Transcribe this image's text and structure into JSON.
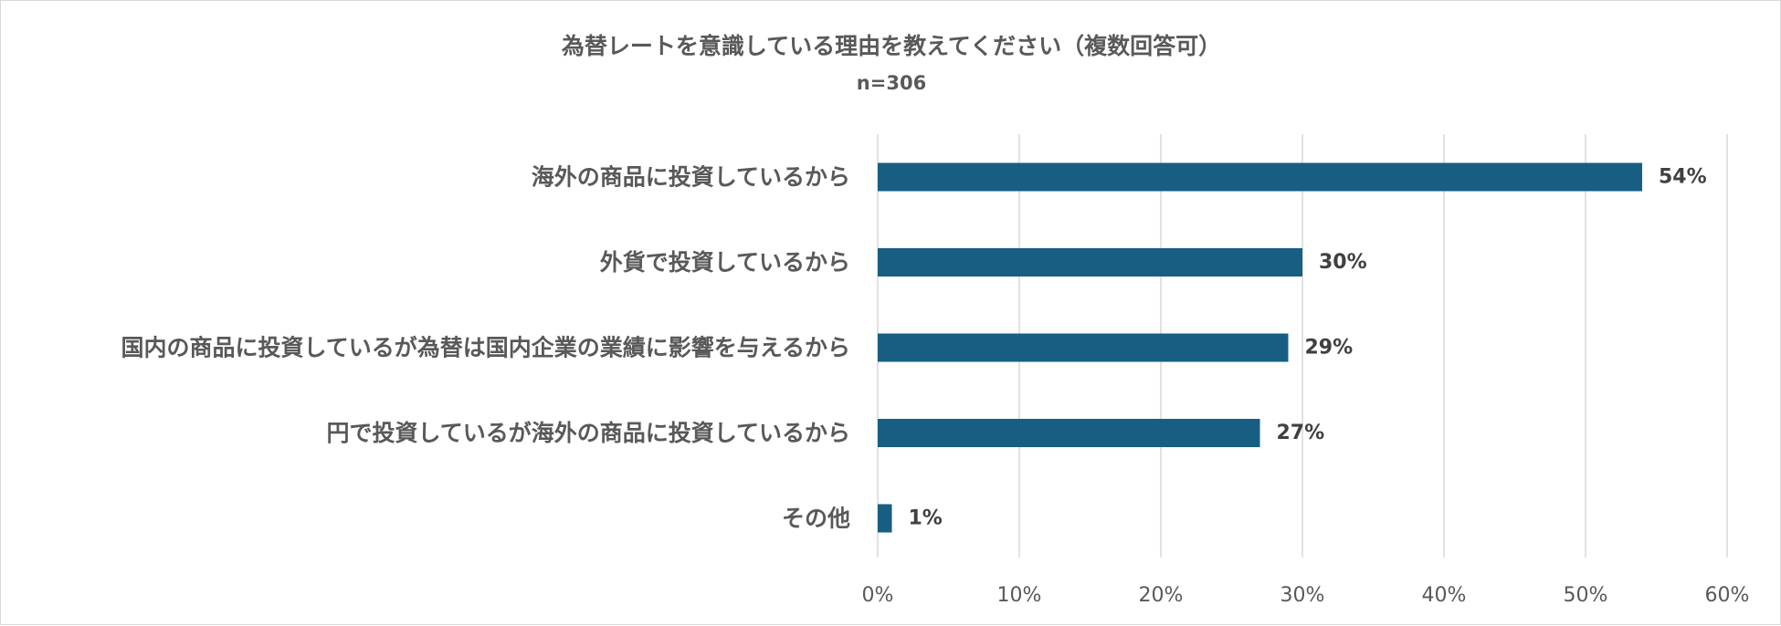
{
  "chart_data": {
    "type": "bar",
    "orientation": "horizontal",
    "title": "為替レートを意識している理由を教えてください（複数回答可）",
    "subtitle": "n=306",
    "categories": [
      "海外の商品に投資しているから",
      "外貨で投資しているから",
      "国内の商品に投資しているが為替は国内企業の業績に影響を与えるから",
      "円で投資しているが海外の商品に投資しているから",
      "その他"
    ],
    "values": [
      54,
      30,
      29,
      27,
      1
    ],
    "value_labels": [
      "54%",
      "30%",
      "29%",
      "27%",
      "1%"
    ],
    "xlim": [
      0,
      60
    ],
    "x_ticks": [
      0,
      10,
      20,
      30,
      40,
      50,
      60
    ],
    "x_tick_labels": [
      "0%",
      "10%",
      "20%",
      "30%",
      "40%",
      "50%",
      "60%"
    ],
    "grid": "vertical",
    "legend": "none",
    "bar_color": "#175e82"
  }
}
